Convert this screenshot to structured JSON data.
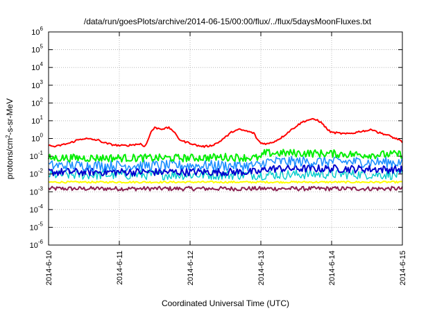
{
  "chart_data": {
    "type": "line",
    "title": "/data/run/goesPlots/archive/2014-06-15/00:00/flux/../flux/5daysMoonFluxes.txt",
    "xlabel": "Coordinated Universal Time (UTC)",
    "ylabel": "protons/cm2-s-sr-MeV",
    "ylabel_parts": {
      "before": "protons/cm",
      "sup": "2",
      "after": "-s-sr-MeV"
    },
    "y_scale": "log",
    "ylim": [
      1e-06,
      1000000.0
    ],
    "y_ticks": [
      {
        "base": "10",
        "exp": "-6"
      },
      {
        "base": "10",
        "exp": "-5"
      },
      {
        "base": "10",
        "exp": "-4"
      },
      {
        "base": "10",
        "exp": "-3"
      },
      {
        "base": "10",
        "exp": "-2"
      },
      {
        "base": "10",
        "exp": "-1"
      },
      {
        "base": "10",
        "exp": "0"
      },
      {
        "base": "10",
        "exp": "1"
      },
      {
        "base": "10",
        "exp": "2"
      },
      {
        "base": "10",
        "exp": "3"
      },
      {
        "base": "10",
        "exp": "4"
      },
      {
        "base": "10",
        "exp": "5"
      },
      {
        "base": "10",
        "exp": "6"
      }
    ],
    "x_ticks": [
      "2014-6-10",
      "2014-6-11",
      "2014-6-12",
      "2014-6-13",
      "2014-6-14",
      "2014-6-15"
    ],
    "x_range_days": [
      0,
      5
    ],
    "grid": true,
    "legend": "none",
    "series": [
      {
        "color": "#ff0000",
        "width": 2,
        "jitter": 0.05,
        "points": [
          [
            0,
            0.4
          ],
          [
            0.1,
            0.35
          ],
          [
            0.2,
            0.45
          ],
          [
            0.3,
            0.55
          ],
          [
            0.4,
            0.8
          ],
          [
            0.5,
            1.0
          ],
          [
            0.6,
            0.9
          ],
          [
            0.7,
            0.8
          ],
          [
            0.8,
            0.55
          ],
          [
            0.9,
            0.45
          ],
          [
            1.0,
            0.4
          ],
          [
            1.1,
            0.4
          ],
          [
            1.2,
            0.45
          ],
          [
            1.3,
            0.5
          ],
          [
            1.35,
            0.35
          ],
          [
            1.4,
            0.7
          ],
          [
            1.45,
            2.5
          ],
          [
            1.5,
            4.0
          ],
          [
            1.6,
            3.5
          ],
          [
            1.7,
            4.0
          ],
          [
            1.75,
            3.0
          ],
          [
            1.8,
            1.6
          ],
          [
            1.85,
            0.9
          ],
          [
            1.9,
            0.7
          ],
          [
            2.0,
            0.55
          ],
          [
            2.1,
            0.4
          ],
          [
            2.2,
            0.35
          ],
          [
            2.3,
            0.4
          ],
          [
            2.4,
            0.6
          ],
          [
            2.5,
            1.2
          ],
          [
            2.6,
            2.5
          ],
          [
            2.7,
            3.2
          ],
          [
            2.8,
            2.6
          ],
          [
            2.9,
            2.0
          ],
          [
            2.95,
            0.9
          ],
          [
            3.0,
            0.55
          ],
          [
            3.1,
            0.5
          ],
          [
            3.2,
            0.7
          ],
          [
            3.3,
            1.2
          ],
          [
            3.4,
            2.5
          ],
          [
            3.5,
            5.0
          ],
          [
            3.6,
            9.0
          ],
          [
            3.7,
            12.0
          ],
          [
            3.8,
            11.0
          ],
          [
            3.85,
            8.0
          ],
          [
            3.9,
            5.0
          ],
          [
            3.95,
            3.0
          ],
          [
            4.0,
            2.2
          ],
          [
            4.1,
            2.0
          ],
          [
            4.2,
            1.8
          ],
          [
            4.3,
            2.0
          ],
          [
            4.4,
            2.5
          ],
          [
            4.5,
            2.8
          ],
          [
            4.6,
            3.2
          ],
          [
            4.65,
            2.2
          ],
          [
            4.7,
            2.0
          ],
          [
            4.8,
            1.5
          ],
          [
            4.9,
            1.0
          ],
          [
            4.95,
            0.9
          ],
          [
            5.0,
            0.55
          ]
        ]
      },
      {
        "color": "#00ee00",
        "width": 2,
        "jitter": 0.22,
        "points": [
          [
            0,
            0.08
          ],
          [
            0.5,
            0.08
          ],
          [
            1.0,
            0.08
          ],
          [
            1.5,
            0.08
          ],
          [
            2.0,
            0.08
          ],
          [
            2.5,
            0.09
          ],
          [
            3.0,
            0.08
          ],
          [
            3.05,
            0.15
          ],
          [
            3.5,
            0.15
          ],
          [
            4.0,
            0.14
          ],
          [
            4.5,
            0.12
          ],
          [
            5.0,
            0.13
          ]
        ]
      },
      {
        "color": "#1e90ff",
        "width": 1.6,
        "jitter": 0.3,
        "points": [
          [
            0,
            0.03
          ],
          [
            1.0,
            0.03
          ],
          [
            2.0,
            0.03
          ],
          [
            3.0,
            0.03
          ],
          [
            3.05,
            0.05
          ],
          [
            4.0,
            0.05
          ],
          [
            5.0,
            0.045
          ]
        ]
      },
      {
        "color": "#0000cd",
        "width": 2,
        "jitter": 0.22,
        "points": [
          [
            0,
            0.013
          ],
          [
            1.0,
            0.013
          ],
          [
            2.0,
            0.013
          ],
          [
            3.0,
            0.013
          ],
          [
            3.05,
            0.02
          ],
          [
            4.0,
            0.02
          ],
          [
            5.0,
            0.018
          ]
        ]
      },
      {
        "color": "#00cccc",
        "width": 1.4,
        "jitter": 0.28,
        "points": [
          [
            0,
            0.009
          ],
          [
            1.0,
            0.009
          ],
          [
            2.0,
            0.009
          ],
          [
            3.0,
            0.009
          ],
          [
            4.0,
            0.01
          ],
          [
            5.0,
            0.009
          ]
        ]
      },
      {
        "color": "#ffff00",
        "width": 2,
        "jitter": 0.05,
        "points": [
          [
            0,
            0.0035
          ],
          [
            2.5,
            0.0035
          ],
          [
            5.0,
            0.0035
          ]
        ]
      },
      {
        "color": "#8b2252",
        "width": 2,
        "jitter": 0.12,
        "points": [
          [
            0,
            0.0015
          ],
          [
            2.5,
            0.0015
          ],
          [
            5.0,
            0.0015
          ]
        ]
      }
    ]
  }
}
